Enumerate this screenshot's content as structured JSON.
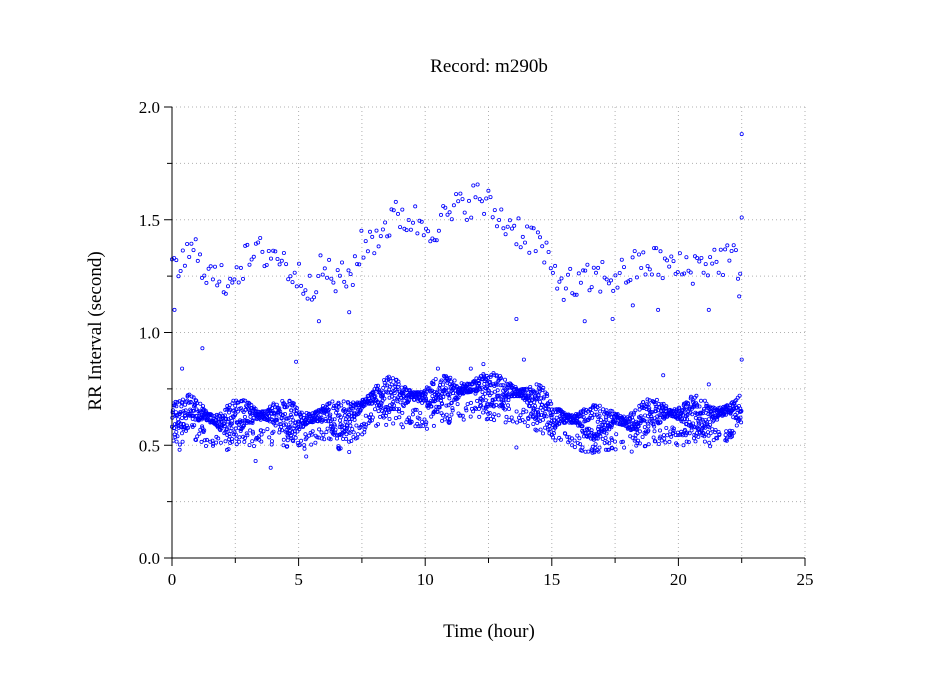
{
  "chart_data": {
    "type": "scatter",
    "title": "Record:  m290b",
    "xlabel": "Time (hour)",
    "ylabel": "RR Interval (second)",
    "xlim": [
      0,
      25
    ],
    "ylim": [
      0.0,
      2.0
    ],
    "xticks": [
      0,
      5,
      10,
      15,
      20,
      25
    ],
    "xtick_labels": [
      "0",
      "5",
      "10",
      "15",
      "20",
      "25"
    ],
    "yticks": [
      0.0,
      0.5,
      1.0,
      1.5,
      2.0
    ],
    "ytick_labels": [
      "0.0",
      "0.5",
      "1.0",
      "1.5",
      "2.0"
    ],
    "grid": true,
    "marker_color": "#0000ff",
    "series": [
      {
        "baseline": [
          [
            0.0,
            0.63
          ],
          [
            0.5,
            0.65
          ],
          [
            1.0,
            0.66
          ],
          [
            1.5,
            0.62
          ],
          [
            2.0,
            0.6
          ],
          [
            2.5,
            0.63
          ],
          [
            3.0,
            0.64
          ],
          [
            3.5,
            0.63
          ],
          [
            4.0,
            0.64
          ],
          [
            4.5,
            0.63
          ],
          [
            5.0,
            0.62
          ],
          [
            5.5,
            0.62
          ],
          [
            6.0,
            0.64
          ],
          [
            6.5,
            0.62
          ],
          [
            7.0,
            0.63
          ],
          [
            7.5,
            0.68
          ],
          [
            8.0,
            0.72
          ],
          [
            8.5,
            0.73
          ],
          [
            9.0,
            0.72
          ],
          [
            9.5,
            0.72
          ],
          [
            10.0,
            0.71
          ],
          [
            10.5,
            0.73
          ],
          [
            11.0,
            0.74
          ],
          [
            11.5,
            0.75
          ],
          [
            12.0,
            0.76
          ],
          [
            12.5,
            0.75
          ],
          [
            13.0,
            0.74
          ],
          [
            13.5,
            0.74
          ],
          [
            14.0,
            0.72
          ],
          [
            14.5,
            0.7
          ],
          [
            15.0,
            0.63
          ],
          [
            15.5,
            0.62
          ],
          [
            16.0,
            0.61
          ],
          [
            16.5,
            0.6
          ],
          [
            17.0,
            0.61
          ],
          [
            17.5,
            0.62
          ],
          [
            18.0,
            0.6
          ],
          [
            18.5,
            0.62
          ],
          [
            19.0,
            0.64
          ],
          [
            19.5,
            0.65
          ],
          [
            20.0,
            0.64
          ],
          [
            20.5,
            0.65
          ],
          [
            21.0,
            0.63
          ],
          [
            21.5,
            0.64
          ],
          [
            22.0,
            0.66
          ],
          [
            22.5,
            0.66
          ]
        ],
        "upper_band": [
          [
            0.0,
            1.25
          ],
          [
            0.5,
            1.33
          ],
          [
            1.0,
            1.36
          ],
          [
            1.5,
            1.25
          ],
          [
            2.0,
            1.22
          ],
          [
            2.5,
            1.28
          ],
          [
            3.0,
            1.32
          ],
          [
            3.5,
            1.35
          ],
          [
            4.0,
            1.36
          ],
          [
            4.5,
            1.3
          ],
          [
            5.0,
            1.24
          ],
          [
            5.5,
            1.22
          ],
          [
            6.0,
            1.28
          ],
          [
            6.5,
            1.23
          ],
          [
            7.0,
            1.24
          ],
          [
            7.5,
            1.38
          ],
          [
            8.0,
            1.42
          ],
          [
            8.5,
            1.48
          ],
          [
            9.0,
            1.52
          ],
          [
            9.5,
            1.5
          ],
          [
            10.0,
            1.47
          ],
          [
            10.5,
            1.48
          ],
          [
            11.0,
            1.52
          ],
          [
            11.5,
            1.57
          ],
          [
            12.0,
            1.6
          ],
          [
            12.5,
            1.56
          ],
          [
            13.0,
            1.5
          ],
          [
            13.5,
            1.47
          ],
          [
            14.0,
            1.43
          ],
          [
            14.5,
            1.4
          ],
          [
            15.0,
            1.26
          ],
          [
            15.5,
            1.22
          ],
          [
            16.0,
            1.2
          ],
          [
            16.5,
            1.23
          ],
          [
            17.0,
            1.25
          ],
          [
            17.5,
            1.24
          ],
          [
            18.0,
            1.27
          ],
          [
            18.5,
            1.3
          ],
          [
            19.0,
            1.31
          ],
          [
            19.5,
            1.3
          ],
          [
            20.0,
            1.28
          ],
          [
            20.5,
            1.29
          ],
          [
            21.0,
            1.31
          ],
          [
            21.5,
            1.32
          ],
          [
            22.0,
            1.33
          ],
          [
            22.5,
            1.3
          ]
        ],
        "sparse_outliers": [
          [
            0.3,
            0.48
          ],
          [
            0.4,
            0.84
          ],
          [
            1.2,
            0.93
          ],
          [
            1.6,
            0.52
          ],
          [
            2.3,
            0.51
          ],
          [
            3.3,
            0.43
          ],
          [
            3.9,
            0.4
          ],
          [
            4.9,
            0.87
          ],
          [
            5.0,
            0.5
          ],
          [
            5.3,
            0.45
          ],
          [
            6.2,
            0.53
          ],
          [
            7.0,
            0.47
          ],
          [
            10.5,
            0.84
          ],
          [
            11.8,
            0.84
          ],
          [
            12.3,
            0.86
          ],
          [
            13.6,
            1.06
          ],
          [
            13.6,
            0.49
          ],
          [
            13.9,
            0.88
          ],
          [
            15.8,
            0.5
          ],
          [
            16.0,
            0.62
          ],
          [
            18.2,
            1.12
          ],
          [
            19.4,
            0.81
          ],
          [
            20.2,
            0.5
          ],
          [
            21.2,
            0.77
          ],
          [
            22.4,
            1.16
          ],
          [
            22.5,
            1.88
          ],
          [
            22.5,
            1.51
          ],
          [
            22.5,
            0.88
          ],
          [
            7.0,
            1.09
          ],
          [
            5.8,
            1.05
          ],
          [
            16.3,
            1.05
          ],
          [
            17.4,
            1.06
          ],
          [
            19.2,
            1.1
          ],
          [
            21.2,
            1.1
          ],
          [
            0.1,
            1.1
          ]
        ]
      }
    ]
  }
}
